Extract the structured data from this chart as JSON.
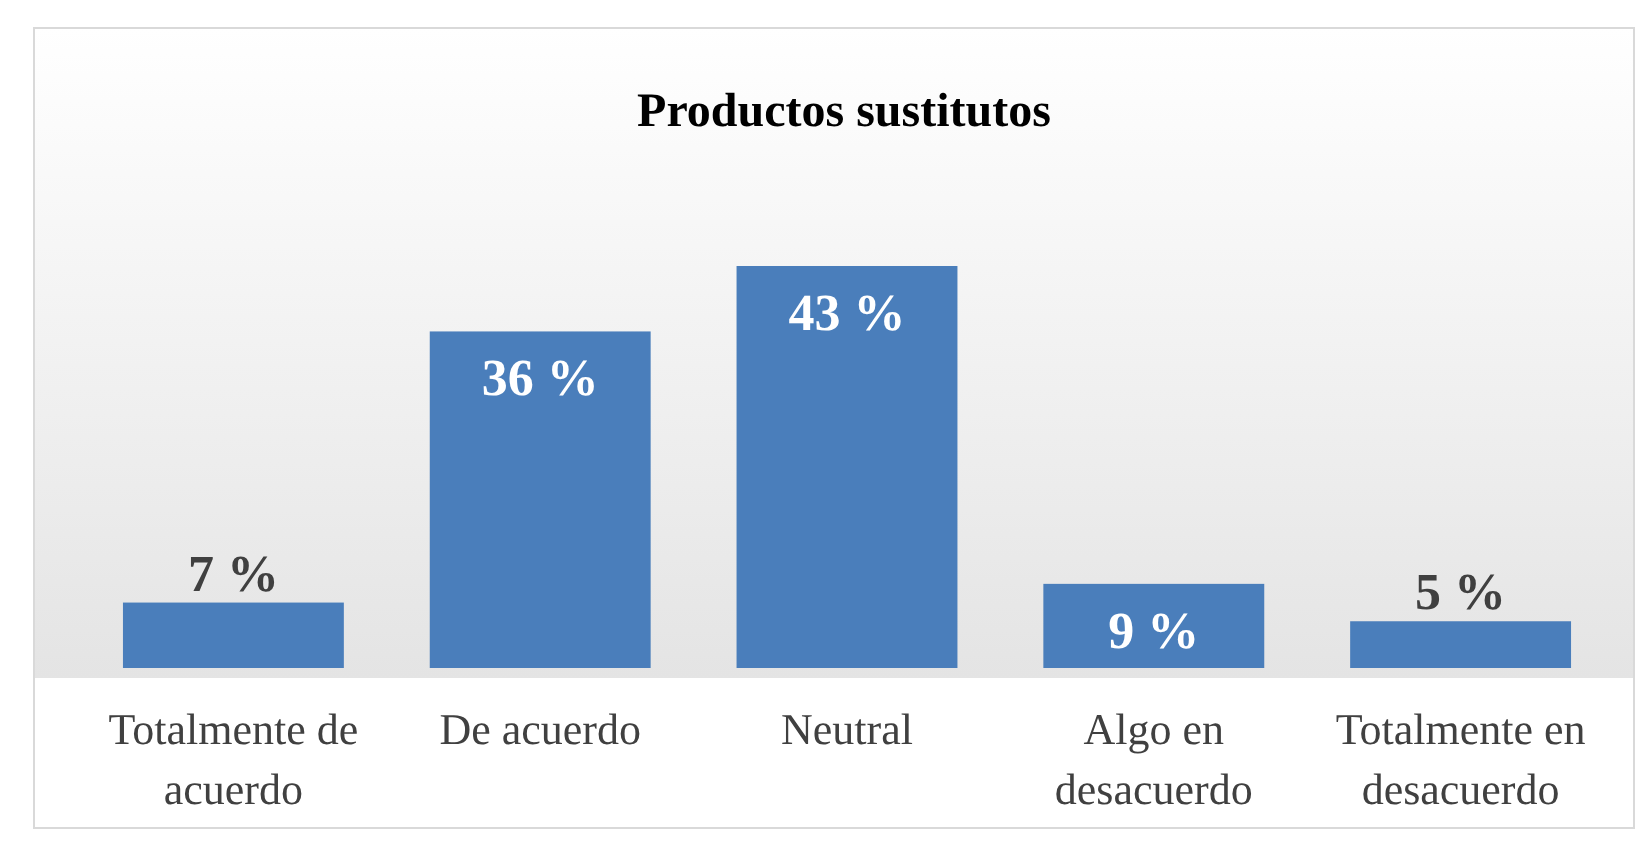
{
  "chart_data": {
    "type": "bar",
    "title": "Productos sustitutos",
    "categories": [
      "Totalmente de acuerdo",
      "De acuerdo",
      "Neutral",
      "Algo en desacuerdo",
      "Totalmente en desacuerdo"
    ],
    "values": [
      7,
      36,
      43,
      9,
      5
    ],
    "color": "#4a7ebb",
    "value_labels": [
      "7 %",
      "36 %",
      "43 %",
      "9 %",
      "5 %"
    ]
  }
}
